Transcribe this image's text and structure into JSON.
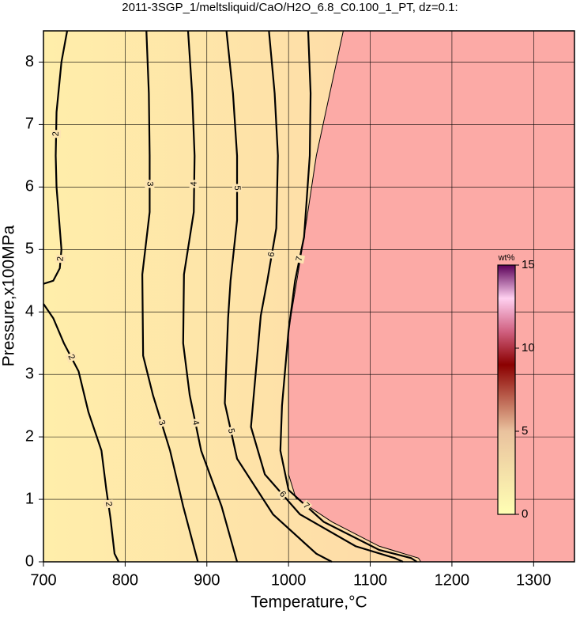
{
  "chart_data": {
    "type": "contour",
    "title": "2011-3SGP_1/meltsliquid/CaO/H2O_6.8_C0.100_1_PT, dz=0.1:",
    "x_label": "Temperature,°C",
    "y_label": "Pressure,x100MPa",
    "xlim": [
      700,
      1350
    ],
    "ylim": [
      0,
      8.5
    ],
    "xticks": [
      700,
      800,
      900,
      1000,
      1100,
      1200,
      1300
    ],
    "yticks": [
      0,
      1,
      2,
      3,
      4,
      5,
      6,
      7,
      8
    ],
    "grid": true,
    "region_color": "#fcaaa6",
    "boundary": {
      "x": [
        1067,
        1034,
        1019,
        1000,
        1000,
        1009,
        1053,
        1111,
        1159,
        1162
      ],
      "y": [
        8.5,
        6.5,
        5.2,
        3.7,
        1.4,
        1.02,
        0.64,
        0.25,
        0.06,
        0
      ]
    },
    "contours": [
      {
        "level": 2,
        "x": [
          729,
          722,
          716,
          715,
          716,
          719,
          722,
          720,
          712,
          700
        ],
        "y": [
          8.5,
          8,
          7.2,
          6.5,
          6,
          5.5,
          5,
          4.7,
          4.5,
          4.45
        ]
      },
      {
        "level": 2,
        "x": [
          700,
          712,
          725,
          743,
          755,
          771,
          777,
          782,
          787,
          792
        ],
        "y": [
          4.13,
          3.9,
          3.5,
          3.05,
          2.4,
          1.78,
          1.15,
          0.7,
          0.13,
          0
        ]
      },
      {
        "level": 3,
        "x": [
          826,
          829,
          830,
          830,
          821,
          822,
          834,
          855,
          871,
          889
        ],
        "y": [
          8.5,
          7.5,
          6.5,
          5.6,
          4.6,
          3.3,
          2.67,
          1.78,
          0.89,
          0
        ]
      },
      {
        "level": 4,
        "x": [
          877,
          882,
          885,
          884,
          872,
          871,
          879,
          893,
          918,
          937
        ],
        "y": [
          8.5,
          7.5,
          6.5,
          5.6,
          4.6,
          3.5,
          2.67,
          1.78,
          0.89,
          0
        ]
      },
      {
        "level": 5,
        "x": [
          924,
          932,
          937,
          937,
          929,
          926,
          922,
          937,
          981,
          1034,
          1053
        ],
        "y": [
          8.5,
          7.5,
          6.5,
          5.47,
          4.5,
          3.9,
          2.54,
          1.65,
          0.76,
          0.13,
          0
        ]
      },
      {
        "level": 6,
        "x": [
          976,
          983,
          987,
          985,
          974,
          966,
          954,
          971,
          1014,
          1082,
          1130,
          1140
        ],
        "y": [
          8.5,
          7.5,
          6.5,
          5.34,
          4.5,
          3.94,
          2.16,
          1.4,
          0.76,
          0.25,
          0.06,
          0
        ]
      },
      {
        "level": 7,
        "x": [
          1024,
          1027,
          1026,
          1019,
          1008,
          1000,
          992,
          990,
          1000,
          1043,
          1111,
          1150,
          1157
        ],
        "y": [
          8.5,
          7.5,
          6.5,
          5.2,
          4.5,
          3.7,
          2.5,
          1.78,
          1.15,
          0.64,
          0.19,
          0.06,
          0
        ]
      }
    ],
    "colorbar": {
      "label": "wt%",
      "lim": [
        0,
        15
      ],
      "ticks": [
        0,
        5,
        10,
        15
      ],
      "colormap": [
        {
          "value": 0,
          "color": "#ffffb4"
        },
        {
          "value": 5,
          "color": "#eac29e"
        },
        {
          "value": 9,
          "color": "#8b0000"
        },
        {
          "value": 11,
          "color": "#d06080"
        },
        {
          "value": 13,
          "color": "#ffd0f0"
        },
        {
          "value": 15,
          "color": "#5a0058"
        }
      ]
    }
  }
}
